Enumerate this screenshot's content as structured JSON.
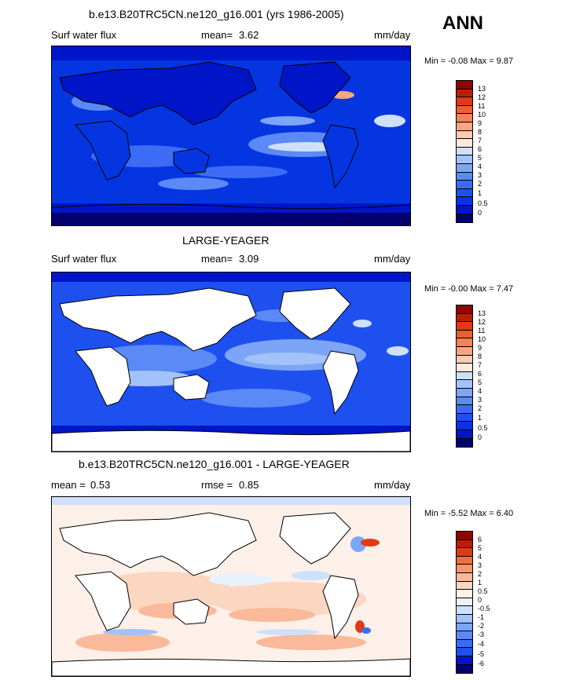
{
  "season": "ANN",
  "colors": {
    "abs_scale": [
      "#04006e",
      "#0015c8",
      "#0535e1",
      "#1e50f0",
      "#3c6cf5",
      "#5b89f5",
      "#7da5f7",
      "#a3c2f9",
      "#cfe0fc",
      "#fde9dd",
      "#fbcbb2",
      "#f9a584",
      "#f6805a",
      "#f15c32",
      "#e03a14",
      "#bc1c05",
      "#8c0600"
    ],
    "diff_scale": [
      "#04006e",
      "#0015c8",
      "#1e50f0",
      "#3c6cf5",
      "#5b89f5",
      "#7da5f7",
      "#a3c2f9",
      "#cfe0fc",
      "#eaf1fe",
      "#fdf0e8",
      "#fbd6c0",
      "#f9b99a",
      "#f6966e",
      "#f1703f",
      "#e03a14",
      "#bc1c05",
      "#8c0600"
    ],
    "land": "#ffffff",
    "coast": "#000000"
  },
  "panels": [
    {
      "title": "b.e13.B20TRC5CN.ne120_g16.001 (yrs 1986-2005)",
      "left_label": "Surf water flux",
      "stat_label": "mean=",
      "stat_value": "3.62",
      "units": "mm/day",
      "minmax": "Min =  -0.08 Max =   9.87",
      "cb_labels": [
        "13",
        "12",
        "11",
        "10",
        "9",
        "8",
        "7",
        "6",
        "5",
        "4",
        "3",
        "2",
        "1",
        "0.5",
        "0"
      ]
    },
    {
      "title": "LARGE-YEAGER",
      "left_label": "Surf water flux",
      "stat_label": "mean=",
      "stat_value": "3.09",
      "units": "mm/day",
      "minmax": "Min =  -0.00 Max =   7.47",
      "cb_labels": [
        "13",
        "12",
        "11",
        "10",
        "9",
        "8",
        "7",
        "6",
        "5",
        "4",
        "3",
        "2",
        "1",
        "0.5",
        "0"
      ]
    },
    {
      "title": "b.e13.B20TRC5CN.ne120_g16.001 - LARGE-YEAGER",
      "left_label": "mean =",
      "left_value": "0.53",
      "stat_label": "rmse =",
      "stat_value": "0.85",
      "units": "mm/day",
      "minmax": "Min =  -5.52 Max =   6.40",
      "cb_labels": [
        "6",
        "5",
        "4",
        "3",
        "2",
        "1",
        "0.5",
        "0",
        "-0.5",
        "-1",
        "-2",
        "-3",
        "-4",
        "-5",
        "-6"
      ]
    }
  ]
}
